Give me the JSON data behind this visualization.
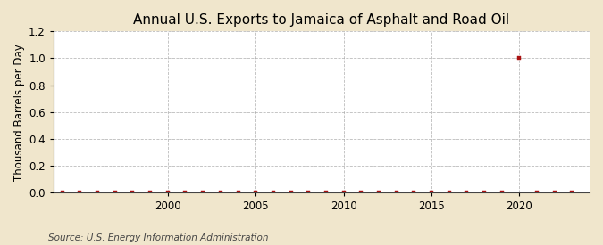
{
  "title": "Annual U.S. Exports to Jamaica of Asphalt and Road Oil",
  "ylabel": "Thousand Barrels per Day",
  "source": "Source: U.S. Energy Information Administration",
  "figure_bg_color": "#f0e6cc",
  "plot_bg_color": "#ffffff",
  "grid_color": "#aaaaaa",
  "marker_color": "#aa1111",
  "xlim": [
    1993.5,
    2024
  ],
  "ylim": [
    0.0,
    1.2
  ],
  "yticks": [
    0.0,
    0.2,
    0.4,
    0.6,
    0.8,
    1.0,
    1.2
  ],
  "xticks": [
    2000,
    2005,
    2010,
    2015,
    2020
  ],
  "years": [
    1994,
    1995,
    1996,
    1997,
    1998,
    1999,
    2000,
    2001,
    2002,
    2003,
    2004,
    2005,
    2006,
    2007,
    2008,
    2009,
    2010,
    2011,
    2012,
    2013,
    2014,
    2015,
    2016,
    2017,
    2018,
    2019,
    2020,
    2021,
    2022,
    2023
  ],
  "values": [
    0.0,
    0.0,
    0.0,
    0.0,
    0.0,
    0.0,
    0.0,
    0.0,
    0.0,
    0.0,
    0.0,
    0.0,
    0.0,
    0.0,
    0.0,
    0.0,
    0.0,
    0.0,
    0.0,
    0.0,
    0.0,
    0.0,
    0.0,
    0.0,
    0.0,
    0.0,
    1.0,
    0.0,
    0.0,
    0.0
  ],
  "title_fontsize": 11,
  "axis_fontsize": 8.5,
  "tick_fontsize": 8.5,
  "source_fontsize": 7.5
}
